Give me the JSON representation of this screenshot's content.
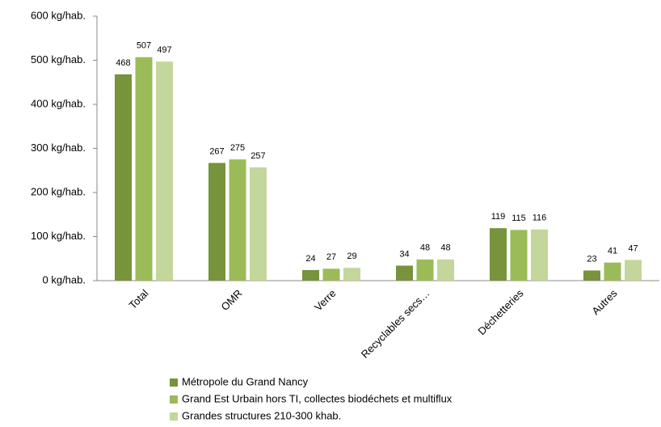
{
  "chart_data": {
    "type": "bar",
    "categories": [
      "Total",
      "OMR",
      "Verre",
      "Recyclables secs…",
      "Déchetteries",
      "Autres"
    ],
    "series": [
      {
        "name": "Métropole du Grand Nancy",
        "color": "#77933c",
        "values": [
          468,
          267,
          24,
          34,
          119,
          23
        ]
      },
      {
        "name": "Grand Est Urbain hors TI, collectes biodéchets et multiflux",
        "color": "#9bbb59",
        "values": [
          507,
          275,
          27,
          48,
          115,
          41
        ]
      },
      {
        "name": "Grandes structures 210-300 khab.",
        "color": "#c3d69b",
        "values": [
          497,
          257,
          29,
          48,
          116,
          47
        ]
      }
    ],
    "ylim": [
      0,
      600
    ],
    "yticks": [
      {
        "value": 0,
        "label": "0 kg/hab."
      },
      {
        "value": 100,
        "label": "100 kg/hab."
      },
      {
        "value": 200,
        "label": "200 kg/hab."
      },
      {
        "value": 300,
        "label": "300 kg/hab."
      },
      {
        "value": 400,
        "label": "400 kg/hab."
      },
      {
        "value": 500,
        "label": "500 kg/hab."
      },
      {
        "value": 600,
        "label": "600 kg/hab."
      }
    ],
    "grid": false
  }
}
